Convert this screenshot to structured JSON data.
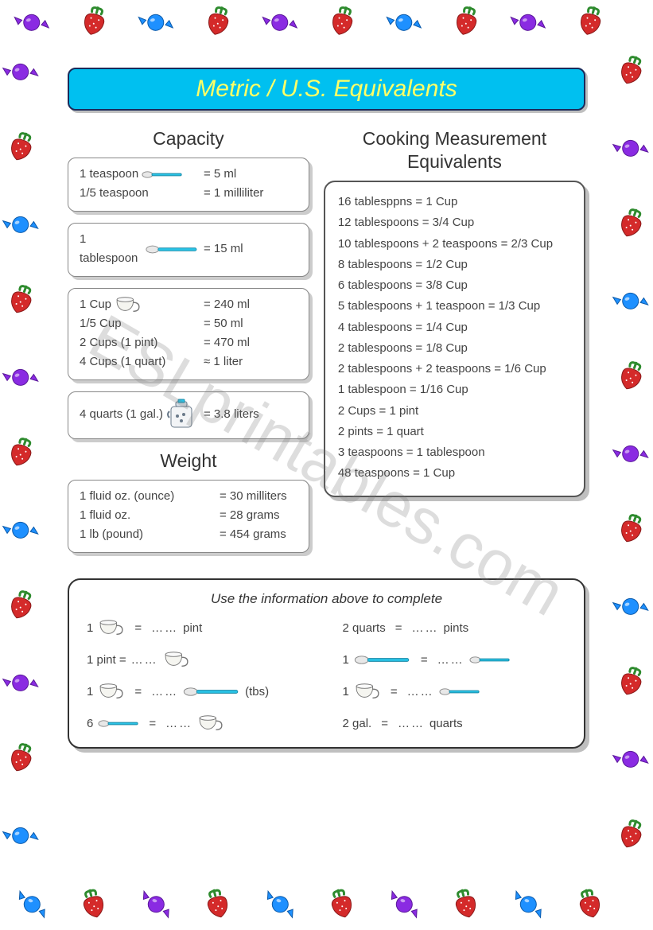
{
  "title": "Metric / U.S. Equivalents",
  "watermark": "ESLprintables.com",
  "colors": {
    "title_bg": "#00c0f0",
    "title_text": "#ffff66",
    "title_border": "#1a2a5a",
    "card_border": "#888888",
    "text": "#444444",
    "spoon_blue": "#29c3e6",
    "candy_purple": "#8a2be2",
    "candy_blue": "#1e90ff",
    "strawberry_red": "#d42a2a",
    "strawberry_green": "#2e8b2e"
  },
  "sections": {
    "capacity": {
      "heading": "Capacity",
      "cards": [
        {
          "rows": [
            {
              "lhs": "1 teaspoon",
              "icon": "teaspoon",
              "rhs": "= 5 ml"
            },
            {
              "lhs": "1/5 teaspoon",
              "icon": null,
              "rhs": "= 1 milliliter"
            }
          ]
        },
        {
          "rows": [
            {
              "lhs": "1 tablespoon",
              "icon": "tablespoon",
              "rhs": "= 15 ml"
            }
          ]
        },
        {
          "rows": [
            {
              "lhs": "1 Cup",
              "icon": "cup",
              "rhs": "= 240 ml"
            },
            {
              "lhs": "1/5 Cup",
              "icon": null,
              "rhs": "= 50 ml"
            },
            {
              "lhs": "2 Cups (1 pint)",
              "icon": null,
              "rhs": "= 470 ml"
            },
            {
              "lhs": "4 Cups (1 quart)",
              "icon": null,
              "rhs": "≈ 1 liter"
            }
          ]
        },
        {
          "rows": [
            {
              "lhs": "4 quarts (1 gal.)",
              "icon": "jug",
              "rhs": "= 3.8 liters"
            }
          ]
        }
      ]
    },
    "weight": {
      "heading": "Weight",
      "rows": [
        {
          "lhs": "1 fluid oz. (ounce)",
          "rhs": "= 30 milliters"
        },
        {
          "lhs": "1 fluid oz.",
          "rhs": "= 28 grams"
        },
        {
          "lhs": "1 lb (pound)",
          "rhs": "= 454 grams"
        }
      ]
    },
    "cooking": {
      "heading1": "Cooking Measurement",
      "heading2": "Equivalents",
      "lines": [
        "16 tablesppns = 1 Cup",
        "12 tablespoons = 3/4 Cup",
        "10 tablespoons + 2 teaspoons = 2/3 Cup",
        "8 tablespoons = 1/2 Cup",
        "6 tablespoons = 3/8 Cup",
        "5 tablespoons + 1 teaspoon = 1/3 Cup",
        "4 tablespoons = 1/4 Cup",
        "2 tablespoons = 1/8 Cup",
        "2 tablespoons + 2 teaspoons = 1/6 Cup",
        "1 tablespoon = 1/16 Cup",
        "2 Cups = 1 pint",
        "2 pints = 1 quart",
        "3 teaspoons = 1 tablespoon",
        "48 teaspoons = 1 Cup"
      ]
    }
  },
  "exercise": {
    "instruction": "Use the information above to complete",
    "dots": "……",
    "items": [
      {
        "left_text": "1",
        "left_icon": "cup",
        "mid": "=",
        "right_text": "pint",
        "right_icon": null,
        "suffix": ""
      },
      {
        "left_text": "2 quarts",
        "left_icon": null,
        "mid": "=",
        "right_text": "pints",
        "right_icon": null,
        "suffix": ""
      },
      {
        "left_text": "1 pint =",
        "left_icon": null,
        "mid": "",
        "right_text": "",
        "right_icon": "cup",
        "suffix": ""
      },
      {
        "left_text": "1",
        "left_icon": "tablespoon",
        "mid": "=",
        "right_text": "",
        "right_icon": "teaspoon",
        "suffix": ""
      },
      {
        "left_text": "1",
        "left_icon": "cup",
        "mid": "=",
        "right_text": "",
        "right_icon": "tablespoon",
        "suffix": "(tbs)"
      },
      {
        "left_text": "1",
        "left_icon": "cup",
        "mid": "=",
        "right_text": "",
        "right_icon": "teaspoon",
        "suffix": ""
      },
      {
        "left_text": "6",
        "left_icon": "teaspoon",
        "mid": "=",
        "right_text": "",
        "right_icon": "cup",
        "suffix": ""
      },
      {
        "left_text": "2 gal.",
        "left_icon": null,
        "mid": "=",
        "right_text": "quarts",
        "right_icon": null,
        "suffix": ""
      }
    ]
  },
  "border": {
    "pattern": [
      "candy-purple",
      "strawberry",
      "candy-blue",
      "strawberry"
    ],
    "top_count": 10,
    "bottom_count": 10,
    "side_count": 11
  }
}
